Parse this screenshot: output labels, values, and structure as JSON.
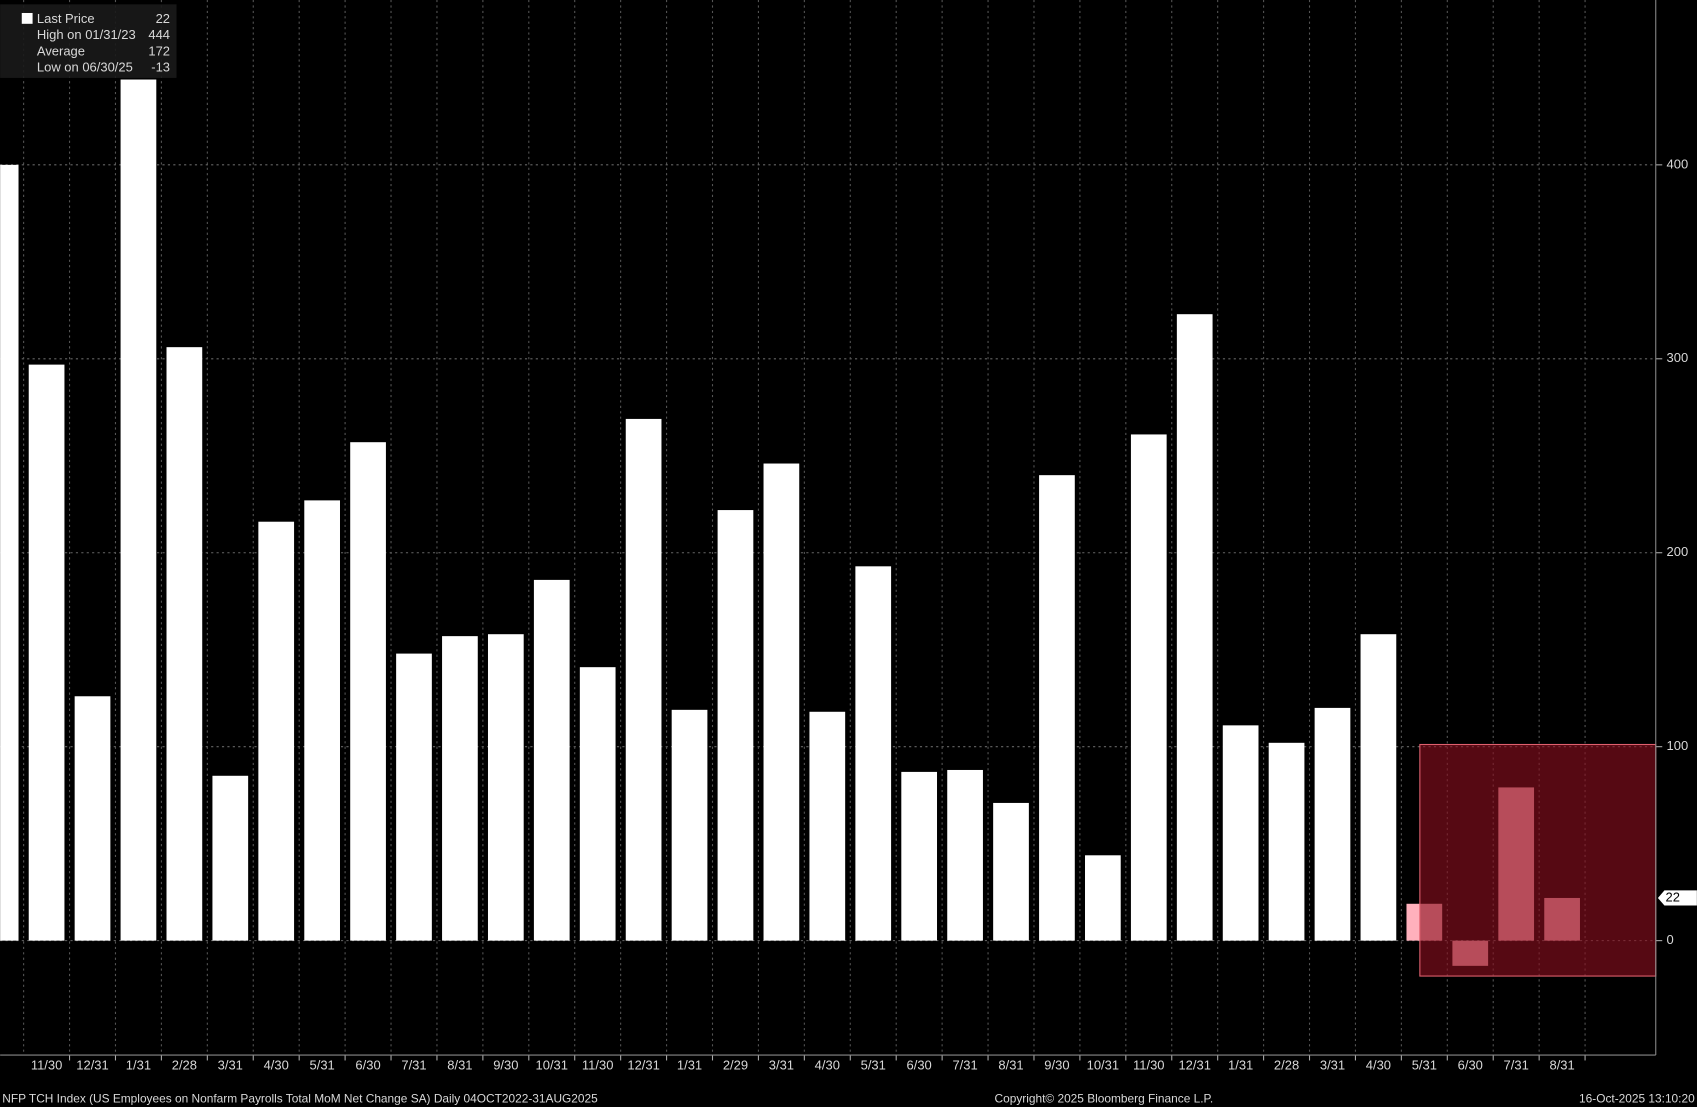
{
  "chart_data": {
    "type": "bar",
    "categories": [
      null,
      "11/30",
      "12/31",
      "1/31",
      "2/28",
      "3/31",
      "4/30",
      "5/31",
      "6/30",
      "7/31",
      "8/31",
      "9/30",
      "10/31",
      "11/30",
      "12/31",
      "1/31",
      "2/29",
      "3/31",
      "4/30",
      "5/31",
      "6/30",
      "7/31",
      "8/31",
      "9/30",
      "10/31",
      "11/30",
      "12/31",
      "1/31",
      "2/28",
      "3/31",
      "4/30",
      "5/31",
      "6/30",
      "7/31",
      "8/31"
    ],
    "values": [
      400,
      297,
      126,
      444,
      306,
      85,
      216,
      227,
      257,
      148,
      157,
      158,
      186,
      141,
      269,
      119,
      222,
      246,
      118,
      193,
      87,
      88,
      71,
      240,
      44,
      261,
      323,
      111,
      102,
      120,
      158,
      19,
      -13,
      79,
      22
    ],
    "colors": [
      "#ffffff",
      "#ffffff",
      "#ffffff",
      "#ffffff",
      "#ffffff",
      "#ffffff",
      "#ffffff",
      "#ffffff",
      "#ffffff",
      "#ffffff",
      "#ffffff",
      "#ffffff",
      "#ffffff",
      "#ffffff",
      "#ffffff",
      "#ffffff",
      "#ffffff",
      "#ffffff",
      "#ffffff",
      "#ffffff",
      "#ffffff",
      "#ffffff",
      "#ffffff",
      "#ffffff",
      "#ffffff",
      "#ffffff",
      "#ffffff",
      "#ffffff",
      "#ffffff",
      "#ffffff",
      "#ffffff",
      "#ffb0bc",
      "#ffb0bc",
      "#ffb0bc",
      "#ffb0bc"
    ],
    "ylim": [
      -59,
      485
    ],
    "yticks": [
      0,
      100,
      200,
      300,
      400
    ],
    "grid": true,
    "legend": [
      {
        "label": "Last Price",
        "value": 22
      },
      {
        "label": "High on 01/31/23",
        "value": 444
      },
      {
        "label": "Average",
        "value": 172
      },
      {
        "label": "Low on 06/30/25",
        "value": -13
      }
    ],
    "footer_left": "NFP TCH Index (US Employees on Nonfarm Payrolls Total MoM Net Change SA) Daily 04OCT2022-31AUG2025",
    "footer_center": "Copyright© 2025 Bloomberg Finance L.P.",
    "footer_right": "16-Oct-2025 13:10:20"
  }
}
